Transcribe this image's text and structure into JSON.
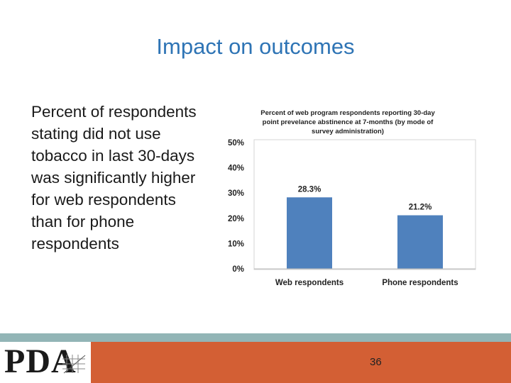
{
  "slide": {
    "title": "Impact on outcomes",
    "body_text": "Percent of respondents stating did not use tobacco in last 30-days was significantly higher for web respondents than for phone respondents"
  },
  "footer": {
    "logo_text": "PDA",
    "page_number": "36"
  },
  "colors": {
    "title": "#2e74b5",
    "bar": "#4f81bd",
    "footer_teal": "#92b5b6",
    "footer_orange": "#d35f34"
  },
  "chart_data": {
    "type": "bar",
    "title_lines": [
      "Percent of web program respondents reporting 30-day",
      "point prevelance abstinence at 7-months (by mode of",
      "survey administration)"
    ],
    "categories": [
      "Web respondents",
      "Phone respondents"
    ],
    "values": [
      28.3,
      21.2
    ],
    "data_labels": [
      "28.3%",
      "21.2%"
    ],
    "y_ticks": [
      0,
      10,
      20,
      30,
      40,
      50
    ],
    "y_tick_labels": [
      "0%",
      "10%",
      "20%",
      "30%",
      "40%",
      "50%"
    ],
    "ylim": [
      0,
      50
    ],
    "grid": false,
    "legend": "none"
  }
}
